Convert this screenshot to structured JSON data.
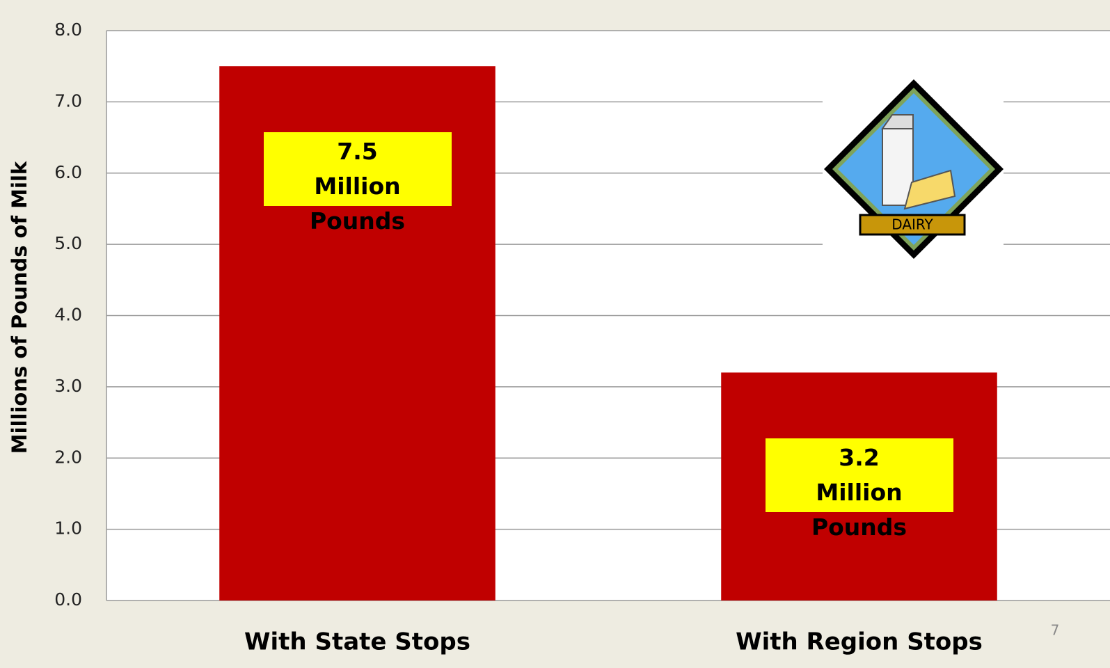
{
  "chart_data": {
    "type": "bar",
    "y_label": "Millions of Pounds of Milk",
    "categories": [
      "With State Stops",
      "With Region Stops"
    ],
    "values": [
      7.5,
      3.2
    ],
    "value_labels": [
      "7.5\nMillion Pounds",
      "3.2\nMillion Pounds"
    ],
    "color": "#c00000",
    "ylim": [
      0,
      8
    ],
    "yticks": [
      {
        "value": 0,
        "label": "0.0"
      },
      {
        "value": 1,
        "label": "1.0"
      },
      {
        "value": 2,
        "label": "2.0"
      },
      {
        "value": 3,
        "label": "3.0"
      },
      {
        "value": 4,
        "label": "4.0"
      },
      {
        "value": 5,
        "label": "5.0"
      },
      {
        "value": 6,
        "label": "6.0"
      },
      {
        "value": 7,
        "label": "7.0"
      },
      {
        "value": 8,
        "label": "8.0"
      }
    ],
    "grid": true
  },
  "icon_label": "DAIRY",
  "page_number": "7"
}
